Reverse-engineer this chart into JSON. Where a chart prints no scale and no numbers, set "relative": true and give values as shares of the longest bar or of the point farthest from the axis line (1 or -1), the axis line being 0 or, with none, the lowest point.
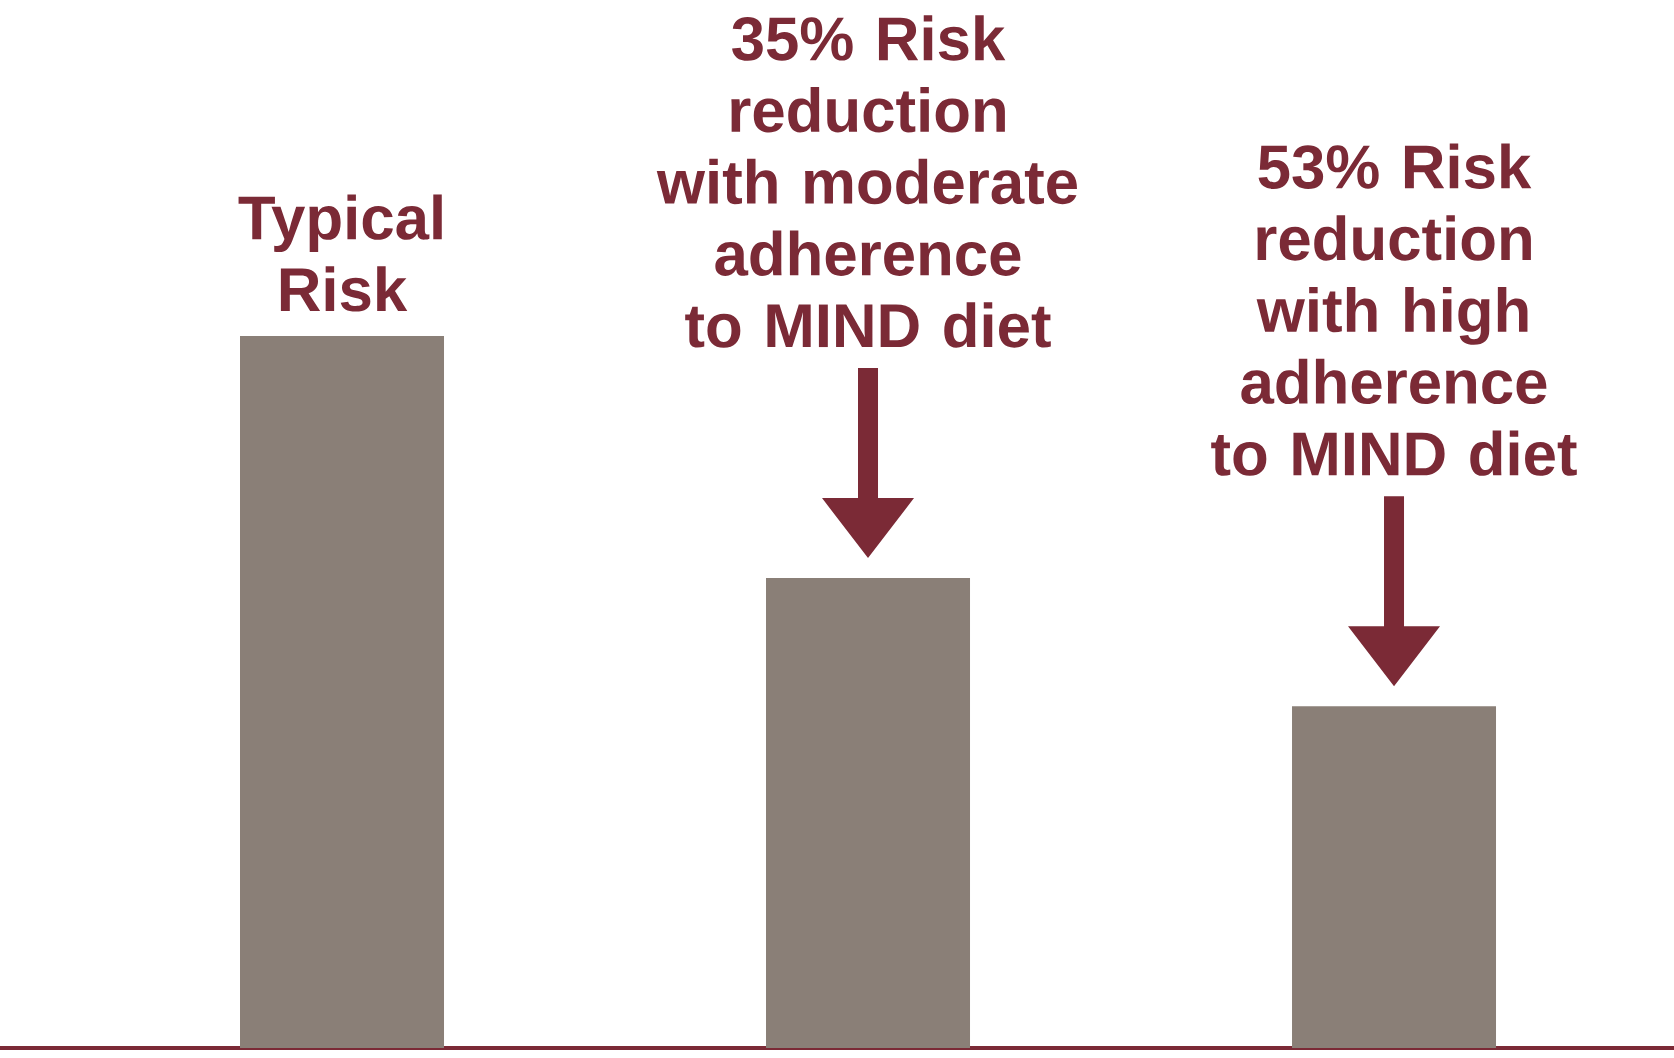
{
  "chart_data": {
    "type": "bar",
    "relative": true,
    "categories": [
      "Typical Risk",
      "35% Risk reduction with moderate adherence to MIND diet",
      "53% Risk reduction with high adherence to MIND diet"
    ],
    "values": [
      1,
      0.66,
      0.48
    ],
    "color": "#8a7f77"
  }
}
